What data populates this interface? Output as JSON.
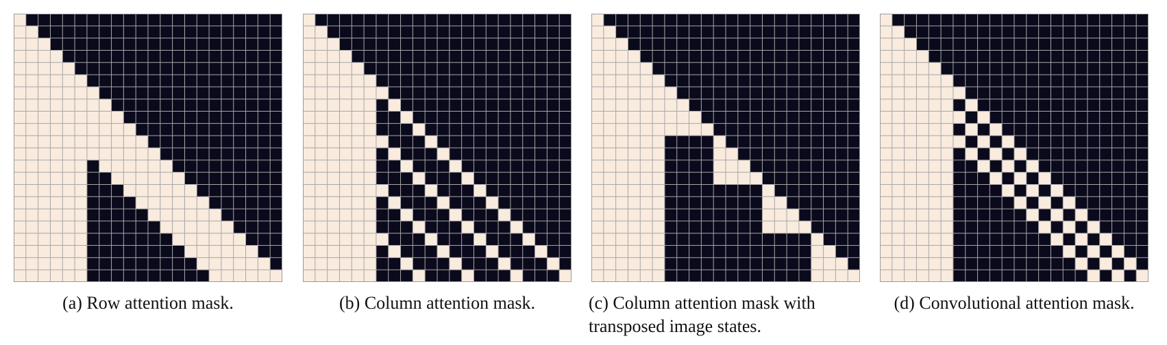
{
  "colors": {
    "attend": "#f9ebde",
    "masked": "#0a0a1c",
    "gridline": "#a7a7a7",
    "border": "#9b9b9b"
  },
  "grid_size": 22,
  "panels": [
    {
      "caption_lines": [
        "(a) Row attention mask."
      ],
      "mask_type": "row"
    },
    {
      "caption_lines": [
        "(b) Column attention mask."
      ],
      "mask_type": "column"
    },
    {
      "caption_lines": [
        "(c) Column attention mask with",
        "transposed image states."
      ],
      "mask_type": "column-transposed"
    },
    {
      "caption_lines": [
        "(d) Convolutional attention mask."
      ],
      "mask_type": "convolutional"
    }
  ]
}
